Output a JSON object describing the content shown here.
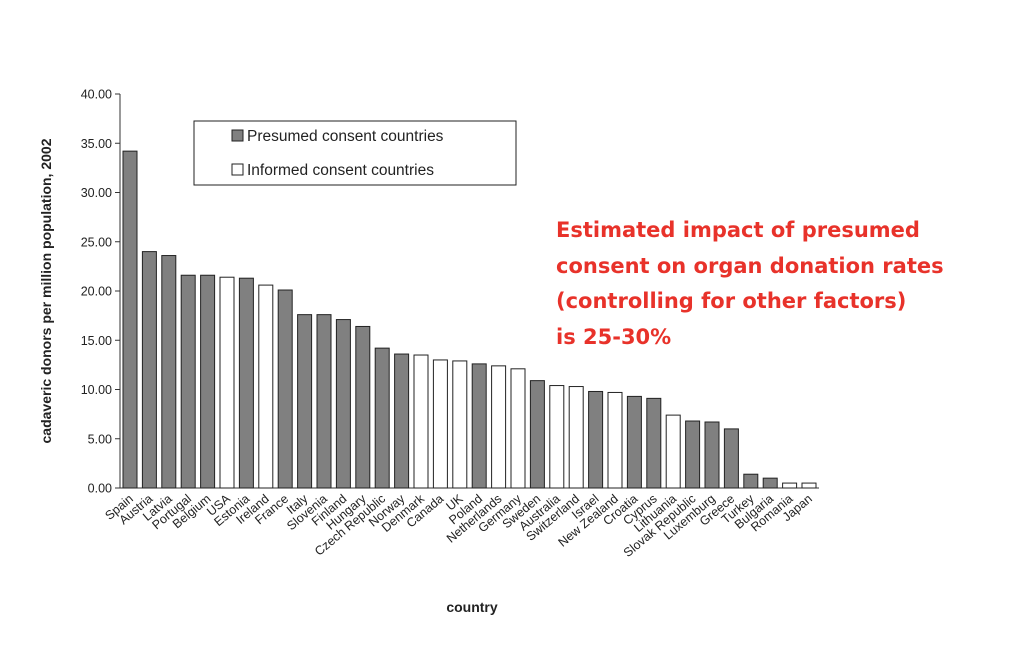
{
  "chart_data": {
    "type": "bar",
    "title": "",
    "xlabel": "country",
    "ylabel": "cadaveric donors per million population, 2002",
    "ylim": [
      0,
      40
    ],
    "yticks": [
      "0.00",
      "5.00",
      "10.00",
      "15.00",
      "20.00",
      "25.00",
      "30.00",
      "35.00",
      "40.00"
    ],
    "grid": false,
    "legend_position": "top-left",
    "series": [
      {
        "name": "Presumed consent countries",
        "color": "#808080"
      },
      {
        "name": "Informed consent countries",
        "color": "#ffffff"
      }
    ],
    "categories": [
      "Spain",
      "Austria",
      "Latvia",
      "Portugal",
      "Belgium",
      "USA",
      "Estonia",
      "Ireland",
      "France",
      "Italy",
      "Slovenia",
      "Finland",
      "Hungary",
      "Czech Republic",
      "Norway",
      "Denmark",
      "Canada",
      "UK",
      "Poland",
      "Netherlands",
      "Germany",
      "Sweden",
      "Australia",
      "Switzerland",
      "Israel",
      "New Zealand",
      "Croatia",
      "Cyprus",
      "Lithuania",
      "Slovak Republic",
      "Luxemburg",
      "Greece",
      "Turkey",
      "Bulgaria",
      "Romania",
      "Japan"
    ],
    "values": [
      34.2,
      24.0,
      23.6,
      21.6,
      21.6,
      21.4,
      21.3,
      20.6,
      20.1,
      17.6,
      17.6,
      17.1,
      16.4,
      14.2,
      13.6,
      13.5,
      13.0,
      12.9,
      12.6,
      12.4,
      12.1,
      10.9,
      10.4,
      10.3,
      9.8,
      9.7,
      9.3,
      9.1,
      7.4,
      6.8,
      6.7,
      6.0,
      1.4,
      1.0,
      0.5,
      0.5
    ],
    "consent": [
      "presumed",
      "presumed",
      "presumed",
      "presumed",
      "presumed",
      "informed",
      "presumed",
      "informed",
      "presumed",
      "presumed",
      "presumed",
      "presumed",
      "presumed",
      "presumed",
      "presumed",
      "informed",
      "informed",
      "informed",
      "presumed",
      "informed",
      "informed",
      "presumed",
      "informed",
      "informed",
      "presumed",
      "informed",
      "presumed",
      "presumed",
      "informed",
      "presumed",
      "presumed",
      "presumed",
      "presumed",
      "presumed",
      "informed",
      "informed"
    ]
  },
  "annotation": {
    "text": "Estimated impact of presumed\nconsent on organ donation rates\n(controlling for other factors)\nis 25-30%",
    "color": "#e8322a"
  }
}
